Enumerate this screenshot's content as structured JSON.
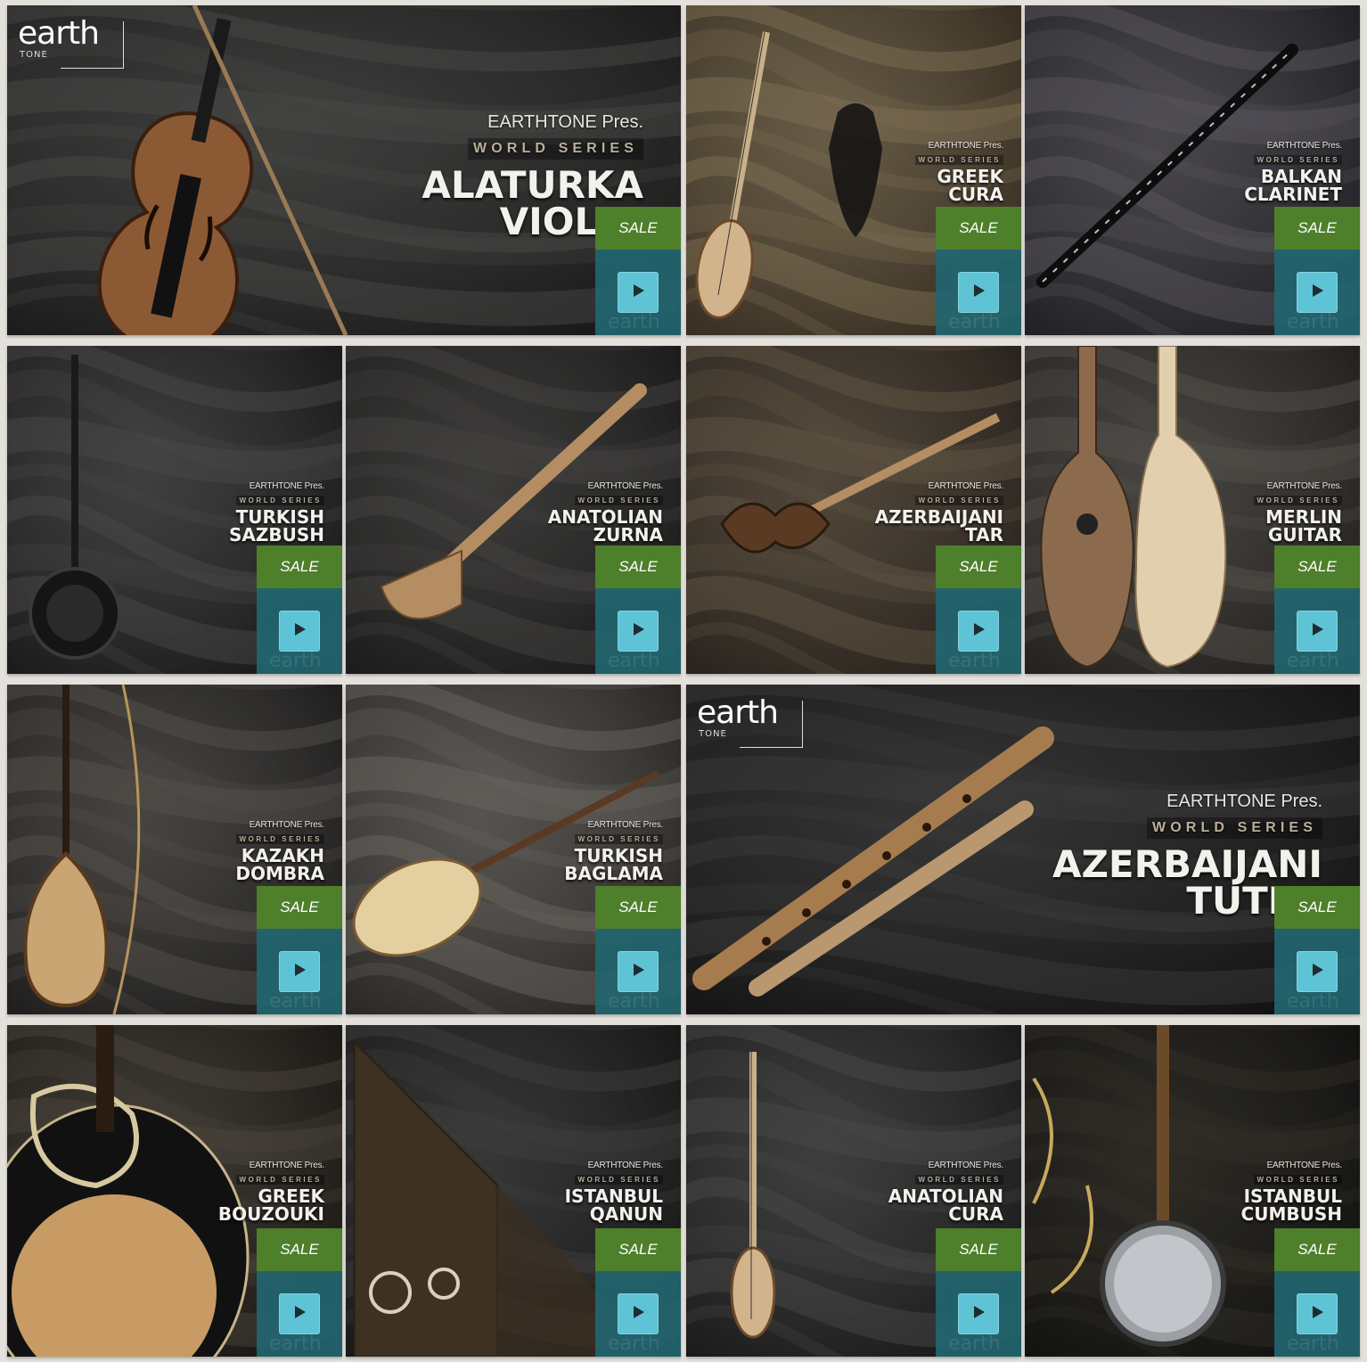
{
  "products": [
    {
      "title_lines": [
        "ALATURKA",
        "VIOLIN"
      ],
      "presenter": "EARTHTONE Pres.",
      "series": "WORLD SERIES",
      "badge": "SALE",
      "instrument_icon": "violin-icon"
    },
    {
      "title_lines": [
        "GREEK",
        "CURA"
      ],
      "presenter": "EARTHTONE Pres.",
      "series": "WORLD SERIES",
      "badge": "SALE",
      "instrument_icon": "cura-icon"
    },
    {
      "title_lines": [
        "BALKAN",
        "CLARINET"
      ],
      "presenter": "EARTHTONE Pres.",
      "series": "WORLD SERIES",
      "badge": "SALE",
      "instrument_icon": "clarinet-icon"
    },
    {
      "title_lines": [
        "TURKISH",
        "SAZBUSH"
      ],
      "presenter": "EARTHTONE Pres.",
      "series": "WORLD SERIES",
      "badge": "SALE",
      "instrument_icon": "sazbush-icon"
    },
    {
      "title_lines": [
        "ANATOLIAN",
        "ZURNA"
      ],
      "presenter": "EARTHTONE Pres.",
      "series": "WORLD SERIES",
      "badge": "SALE",
      "instrument_icon": "zurna-icon"
    },
    {
      "title_lines": [
        "AZERBAIJANI",
        "TAR"
      ],
      "presenter": "EARTHTONE Pres.",
      "series": "WORLD SERIES",
      "badge": "SALE",
      "instrument_icon": "tar-icon"
    },
    {
      "title_lines": [
        "MERLIN",
        "GUITAR"
      ],
      "presenter": "EARTHTONE Pres.",
      "series": "WORLD SERIES",
      "badge": "SALE",
      "instrument_icon": "guitar-icon"
    },
    {
      "title_lines": [
        "KAZAKH",
        "DOMBRA"
      ],
      "presenter": "EARTHTONE Pres.",
      "series": "WORLD SERIES",
      "badge": "SALE",
      "instrument_icon": "dombra-icon"
    },
    {
      "title_lines": [
        "TURKISH",
        "BAGLAMA"
      ],
      "presenter": "EARTHTONE Pres.",
      "series": "WORLD SERIES",
      "badge": "SALE",
      "instrument_icon": "baglama-icon"
    },
    {
      "title_lines": [
        "AZERBAIJANI",
        "TUTEK"
      ],
      "presenter": "EARTHTONE Pres.",
      "series": "WORLD SERIES",
      "badge": "SALE",
      "instrument_icon": "tutek-icon"
    },
    {
      "title_lines": [
        "GREEK",
        "BOUZOUKI"
      ],
      "presenter": "EARTHTONE Pres.",
      "series": "WORLD SERIES",
      "badge": "SALE",
      "instrument_icon": "bouzouki-icon"
    },
    {
      "title_lines": [
        "ISTANBUL",
        "QANUN"
      ],
      "presenter": "EARTHTONE Pres.",
      "series": "WORLD SERIES",
      "badge": "SALE",
      "instrument_icon": "qanun-icon"
    },
    {
      "title_lines": [
        "ANATOLIAN",
        "CURA"
      ],
      "presenter": "EARTHTONE Pres.",
      "series": "WORLD SERIES",
      "badge": "SALE",
      "instrument_icon": "cura-icon"
    },
    {
      "title_lines": [
        "ISTANBUL",
        "CUMBUSH"
      ],
      "presenter": "EARTHTONE Pres.",
      "series": "WORLD SERIES",
      "badge": "SALE",
      "instrument_icon": "cumbush-icon"
    }
  ],
  "logo": {
    "word": "earth",
    "sub": "TONE"
  },
  "colors": {
    "sale_green": "#4e7f2b",
    "panel_teal": "#226570",
    "play_blue": "#5fc3d6",
    "gap": "#e4e1dc"
  }
}
